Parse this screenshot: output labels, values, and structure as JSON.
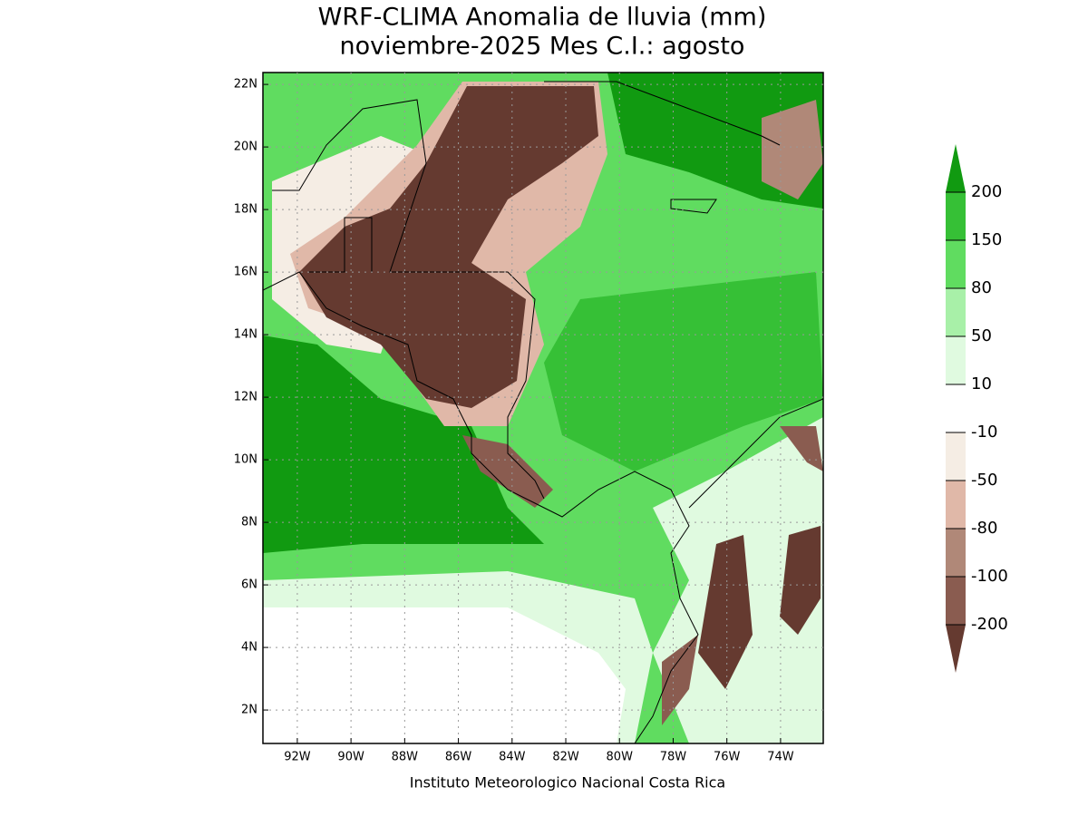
{
  "header": {
    "title": "WRF-CLIMA Anomalia de lluvia (mm)",
    "subtitle": "noviembre-2025 Mes C.I.: agosto"
  },
  "map": {
    "xlim": [
      -93.28,
      -72.41
    ],
    "ylim": [
      0.93,
      22.38
    ],
    "xticks": [
      {
        "value": -92,
        "label": "92W"
      },
      {
        "value": -90,
        "label": "90W"
      },
      {
        "value": -88,
        "label": "88W"
      },
      {
        "value": -86,
        "label": "86W"
      },
      {
        "value": -84,
        "label": "84W"
      },
      {
        "value": -82,
        "label": "82W"
      },
      {
        "value": -80,
        "label": "80W"
      },
      {
        "value": -78,
        "label": "78W"
      },
      {
        "value": -76,
        "label": "76W"
      },
      {
        "value": -74,
        "label": "74W"
      }
    ],
    "yticks": [
      {
        "value": 2,
        "label": "2N"
      },
      {
        "value": 4,
        "label": "4N"
      },
      {
        "value": 6,
        "label": "6N"
      },
      {
        "value": 8,
        "label": "8N"
      },
      {
        "value": 10,
        "label": "10N"
      },
      {
        "value": 12,
        "label": "12N"
      },
      {
        "value": 14,
        "label": "14N"
      },
      {
        "value": 16,
        "label": "16N"
      },
      {
        "value": 18,
        "label": "18N"
      },
      {
        "value": 20,
        "label": "20N"
      },
      {
        "value": 22,
        "label": "22N"
      }
    ],
    "grid": true
  },
  "colorbar": {
    "levels": [
      -200,
      -100,
      -80,
      -50,
      -10,
      10,
      50,
      80,
      150,
      200
    ],
    "colors": [
      "#653a30",
      "#8a5c50",
      "#b08878",
      "#e0b8a8",
      "#f5ede4",
      "#ffffff",
      "#e0fae0",
      "#a8f0a8",
      "#60dc60",
      "#36c036",
      "#119a11"
    ]
  },
  "footer": "Instituto Meteorologico Nacional Costa Rica"
}
